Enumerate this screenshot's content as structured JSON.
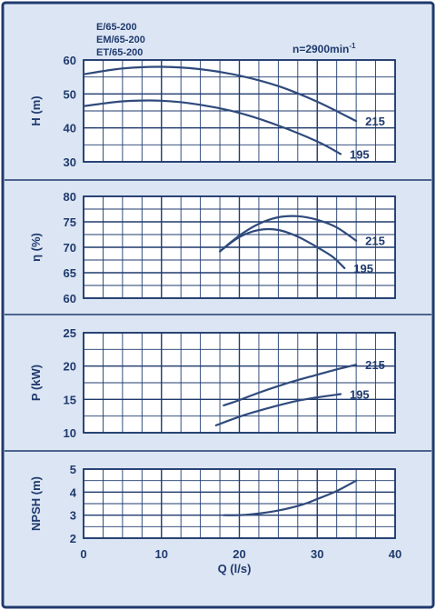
{
  "header": {
    "models": [
      "E/65-200",
      "EM/65-200",
      "ET/65-200"
    ],
    "speed": {
      "text": "n=2900min",
      "sup": "-1"
    }
  },
  "colors": {
    "panel_bg": "#dce5f3",
    "border": "#1f3a6e",
    "grid": "#1f3a6e",
    "curve": "#2f4a7c",
    "text": "#1f3a6e"
  },
  "x_axis": {
    "label": "Q (l/s)",
    "ticks": [
      0,
      10,
      20,
      30,
      40
    ],
    "range": [
      0,
      40
    ],
    "grid_step": 2.5
  },
  "chart_data": [
    {
      "type": "line",
      "title": "",
      "ylabel": "H (m)",
      "ylim": [
        30,
        60
      ],
      "yticks": [
        30,
        40,
        50,
        60
      ],
      "grid_step_y": 5,
      "grid": true,
      "series": [
        {
          "name": "215",
          "x": [
            0,
            5,
            10,
            15,
            20,
            25,
            30,
            35
          ],
          "values": [
            55.8,
            57.5,
            58.0,
            57.3,
            55.4,
            52.3,
            47.7,
            42.0
          ]
        },
        {
          "name": "195",
          "x": [
            0,
            5,
            10,
            15,
            20,
            25,
            30,
            33
          ],
          "values": [
            46.4,
            47.8,
            48.0,
            46.8,
            44.4,
            40.7,
            36.0,
            32.3
          ]
        }
      ]
    },
    {
      "type": "line",
      "title": "",
      "ylabel": "η (%)",
      "ylim": [
        60,
        80
      ],
      "yticks": [
        60,
        65,
        70,
        75,
        80
      ],
      "grid_step_y": 2.5,
      "grid": true,
      "series": [
        {
          "name": "215",
          "x": [
            17.5,
            20,
            22.5,
            25,
            27.5,
            30,
            32.5,
            35
          ],
          "values": [
            69.2,
            72.3,
            74.6,
            75.9,
            76.1,
            75.4,
            73.9,
            71.3
          ]
        },
        {
          "name": "195",
          "x": [
            17.5,
            20,
            22.5,
            25,
            27.5,
            30,
            32,
            33.5
          ],
          "values": [
            69.2,
            72.0,
            73.4,
            73.4,
            72.1,
            70.0,
            68.1,
            65.9
          ]
        }
      ]
    },
    {
      "type": "line",
      "title": "",
      "ylabel": "P (kW)",
      "ylim": [
        10,
        25
      ],
      "yticks": [
        10,
        15,
        20,
        25
      ],
      "grid_step_y": 2.5,
      "grid": true,
      "series": [
        {
          "name": "215",
          "x": [
            18,
            20,
            22.5,
            25,
            27.5,
            30,
            32.5,
            35
          ],
          "values": [
            14.1,
            14.9,
            16.0,
            17.0,
            17.9,
            18.7,
            19.5,
            20.2
          ]
        },
        {
          "name": "195",
          "x": [
            17,
            20,
            22.5,
            25,
            27.5,
            30,
            33
          ],
          "values": [
            11.1,
            12.4,
            13.3,
            14.1,
            14.8,
            15.3,
            15.8
          ]
        }
      ]
    },
    {
      "type": "line",
      "title": "",
      "ylabel": "NPSH (m)",
      "ylim": [
        2,
        5
      ],
      "yticks": [
        2,
        3,
        4,
        5
      ],
      "grid_step_y": 0.5,
      "grid": true,
      "series": [
        {
          "name": "",
          "x": [
            18,
            20,
            22,
            25,
            28,
            30,
            32.5,
            35
          ],
          "values": [
            3.0,
            3.0,
            3.05,
            3.2,
            3.45,
            3.7,
            4.05,
            4.5
          ]
        }
      ]
    }
  ]
}
